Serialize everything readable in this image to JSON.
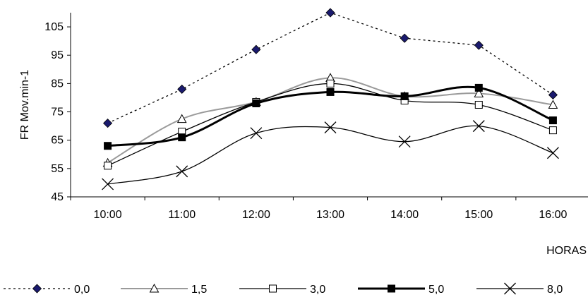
{
  "chart_data": {
    "type": "line",
    "title": "",
    "xlabel": "HORAS",
    "ylabel": "FR Mov.min-1",
    "categories": [
      "10:00",
      "11:00",
      "12:00",
      "13:00",
      "14:00",
      "15:00",
      "16:00"
    ],
    "ylim": [
      45,
      110
    ],
    "yticks": [
      45,
      55,
      65,
      75,
      85,
      95,
      105
    ],
    "grid": false,
    "legend_position": "bottom",
    "series": [
      {
        "name": "0,0",
        "values": [
          71,
          83,
          97,
          110,
          101,
          98.5,
          81
        ],
        "marker": "diamond",
        "line": "dotted",
        "color": "#000000",
        "marker_color": "#1a1a6e"
      },
      {
        "name": "1,5",
        "values": [
          57,
          72.5,
          78.5,
          87,
          80.5,
          81.5,
          77.5
        ],
        "marker": "triangle-open",
        "line": "gray-solid",
        "color": "#9a9a9a"
      },
      {
        "name": "3,0",
        "values": [
          56,
          68,
          78.5,
          85,
          79,
          77.5,
          68.5
        ],
        "marker": "square-open",
        "line": "thin-solid",
        "color": "#000000"
      },
      {
        "name": "5,0",
        "values": [
          63,
          66,
          78,
          82,
          80.5,
          83.5,
          72
        ],
        "marker": "square-filled",
        "line": "thick-solid",
        "color": "#000000"
      },
      {
        "name": "8,0",
        "values": [
          49.5,
          54,
          67.5,
          69.5,
          64.5,
          70,
          60.5
        ],
        "marker": "x",
        "line": "thin-solid",
        "color": "#000000"
      }
    ]
  }
}
